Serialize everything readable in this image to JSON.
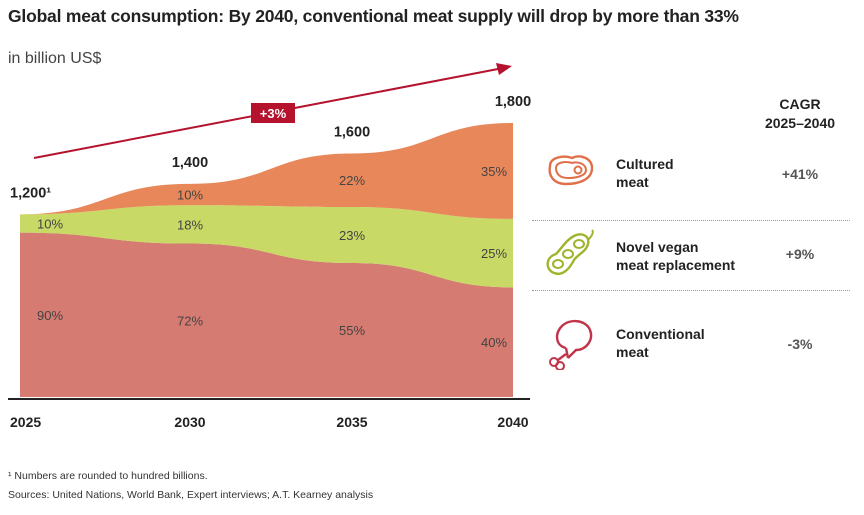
{
  "title": "Global meat consumption: By 2040, conventional meat supply will drop by more than 33%",
  "subtitle": "in billion US$",
  "growth_badge": "+3%",
  "cagr_header": {
    "line1": "CAGR",
    "line2": "2025–2040"
  },
  "legend": [
    {
      "line1": "Cultured",
      "line2": "meat",
      "cagr": "+41%",
      "icon": "steak-icon",
      "color": "#e8885a"
    },
    {
      "line1": "Novel vegan",
      "line2": "meat replacement",
      "cagr": "+9%",
      "icon": "soybean-icon",
      "color": "#c8d965"
    },
    {
      "line1": "Conventional",
      "line2": "meat",
      "cagr": "-3%",
      "icon": "drumstick-icon",
      "color": "#d57b71"
    }
  ],
  "footnotes": {
    "note1": "¹ Numbers are rounded to hundred billions.",
    "sources": "Sources: United Nations, World Bank, Expert interviews; A.T. Kearney analysis"
  },
  "chart_data": {
    "type": "area",
    "title": "Global meat consumption",
    "ylabel": "in billion US$",
    "categories": [
      "2025",
      "2030",
      "2035",
      "2040"
    ],
    "totals": [
      1200,
      1400,
      1600,
      1800
    ],
    "total_labels": [
      "1,200¹",
      "1,400",
      "1,600",
      "1,800"
    ],
    "ylim": [
      0,
      1800
    ],
    "series": [
      {
        "name": "Conventional meat",
        "percent": [
          90,
          72,
          55,
          40
        ],
        "labels": [
          "90%",
          "72%",
          "55%",
          "40%"
        ],
        "color": "#d57b71"
      },
      {
        "name": "Novel vegan meat replacement",
        "percent": [
          10,
          18,
          23,
          25
        ],
        "labels": [
          "10%",
          "18%",
          "23%",
          "25%"
        ],
        "color": "#c8d965"
      },
      {
        "name": "Cultured meat",
        "percent": [
          0,
          10,
          22,
          35
        ],
        "labels": [
          "",
          "10%",
          "22%",
          "35%"
        ],
        "color": "#e8885a"
      }
    ],
    "accent": "#b5122e"
  }
}
